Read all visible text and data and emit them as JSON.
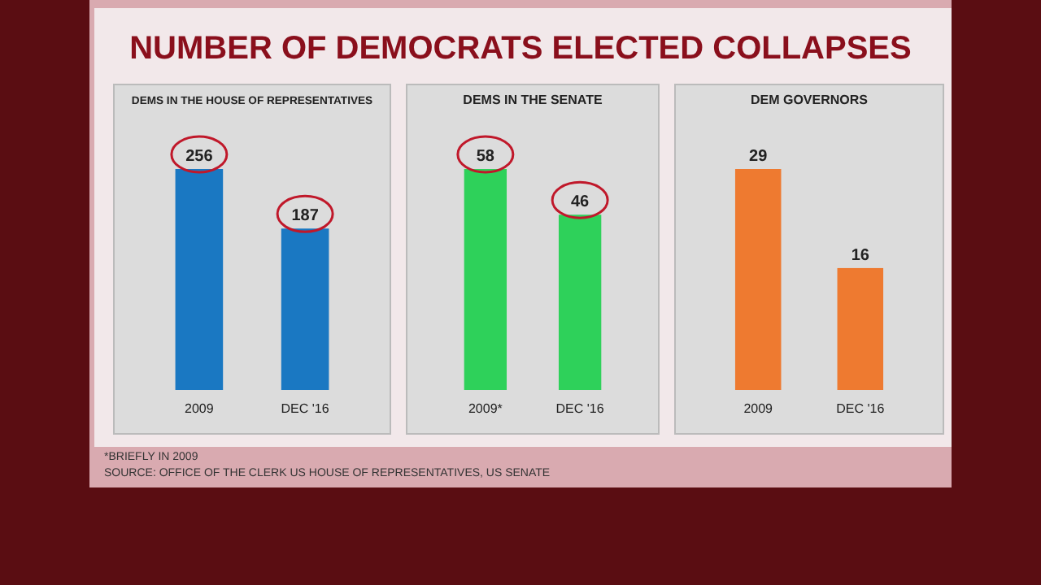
{
  "chart_data": [
    {
      "type": "bar",
      "title": "NUMBER OF DEMOCRATS ELECTED COLLAPSES",
      "subtitle": "DEMS IN THE HOUSE OF REPRESENTATIVES",
      "categories": [
        "2009",
        "DEC '16"
      ],
      "values": [
        256,
        187
      ],
      "color": "#1a78c2",
      "data_labels": true,
      "annotations": [
        "*BRIEFLY IN 2009",
        "SOURCE: OFFICE OF THE CLERK US HOUSE OF REPRESENTATIVES, US SENATE"
      ]
    },
    {
      "type": "bar",
      "title": "DEMS IN THE SENATE",
      "categories": [
        "2009*",
        "DEC '16"
      ],
      "values": [
        58,
        46
      ],
      "color": "#2ed15a",
      "data_labels": true
    },
    {
      "type": "bar",
      "title": "DEM GOVERNORS",
      "categories": [
        "2009",
        "DEC '16"
      ],
      "values": [
        29,
        16
      ],
      "color": "#ee7a30",
      "data_labels": true
    }
  ]
}
